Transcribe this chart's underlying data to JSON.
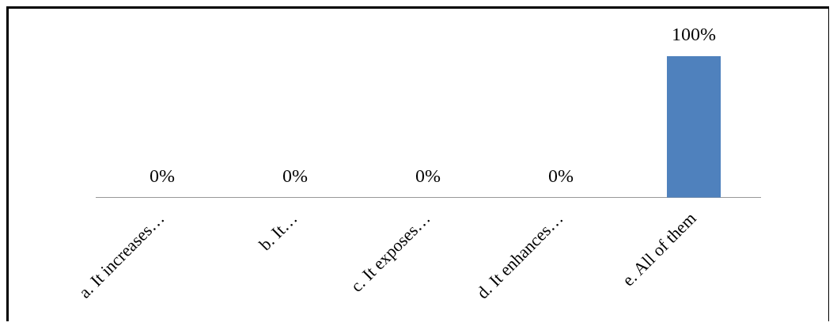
{
  "chart_data": {
    "type": "bar",
    "categories": [
      "a. It increases…",
      "b. It…",
      "c. It exposes…",
      "d. It enhances…",
      "e. All of them"
    ],
    "values": [
      0,
      0,
      0,
      0,
      100
    ],
    "value_labels": [
      "0%",
      "0%",
      "0%",
      "0%",
      "100%"
    ],
    "color": "#4f81bd",
    "grid": false,
    "legend": false
  }
}
